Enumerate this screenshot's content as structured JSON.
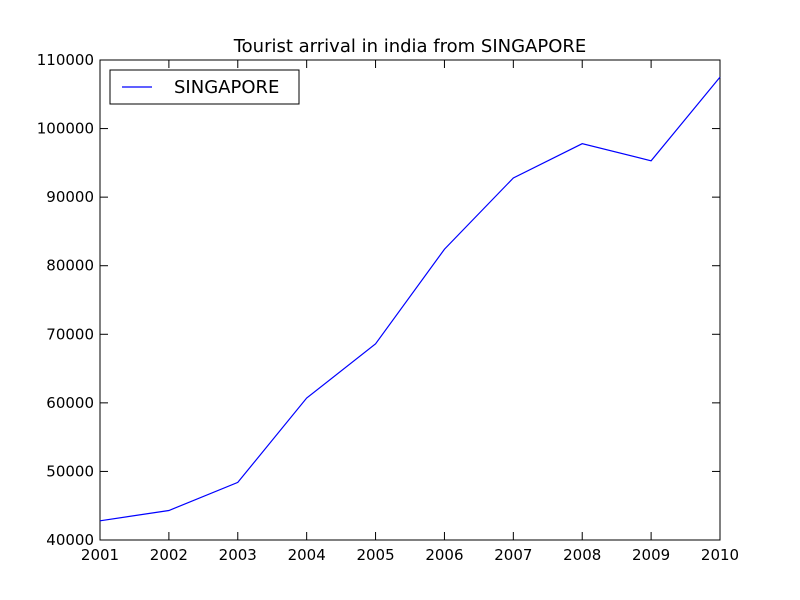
{
  "chart_data": {
    "type": "line",
    "title": "Tourist arrival in india from SINGAPORE",
    "xlabel": "",
    "ylabel": "",
    "x": [
      2001,
      2002,
      2003,
      2004,
      2005,
      2006,
      2007,
      2008,
      2009,
      2010
    ],
    "x_ticks": [
      "2001",
      "2002",
      "2003",
      "2004",
      "2005",
      "2006",
      "2007",
      "2008",
      "2009",
      "2010"
    ],
    "y_ticks": [
      "40000",
      "50000",
      "60000",
      "70000",
      "80000",
      "90000",
      "100000",
      "110000"
    ],
    "xlim": [
      2001,
      2010
    ],
    "ylim": [
      40000,
      110000
    ],
    "grid": false,
    "legend_position": "top-left",
    "series": [
      {
        "name": "SINGAPORE",
        "color": "#0000ff",
        "values": [
          42800,
          44300,
          48400,
          60700,
          68600,
          82400,
          92800,
          97800,
          95300,
          107500
        ]
      }
    ]
  }
}
